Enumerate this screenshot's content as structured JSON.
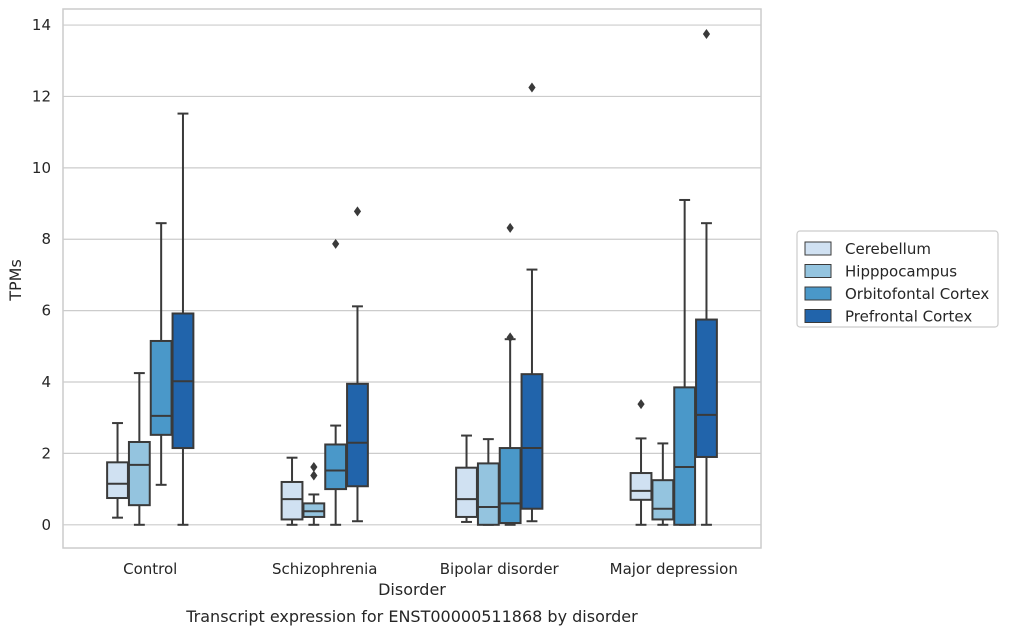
{
  "chart_data": {
    "type": "box",
    "title": "",
    "caption": "Transcript expression for ENST00000511868 by disorder",
    "xlabel": "Disorder",
    "ylabel": "TPMs",
    "categories": [
      "Control",
      "Schizophrenia",
      "Bipolar disorder",
      "Major depression"
    ],
    "ylim": [
      -0.65,
      14.45
    ],
    "yticks": [
      0,
      2,
      4,
      6,
      8,
      10,
      12,
      14
    ],
    "grid": true,
    "legend_position": "right",
    "series": [
      {
        "name": "Cerebellum",
        "color": "#d0e1f2",
        "boxes": [
          {
            "whisker_low": 0.2,
            "q1": 0.75,
            "median": 1.15,
            "q3": 1.75,
            "whisker_high": 2.85,
            "outliers": []
          },
          {
            "whisker_low": 0.0,
            "q1": 0.15,
            "median": 0.72,
            "q3": 1.2,
            "whisker_high": 1.88,
            "outliers": []
          },
          {
            "whisker_low": 0.08,
            "q1": 0.22,
            "median": 0.72,
            "q3": 1.6,
            "whisker_high": 2.5,
            "outliers": []
          },
          {
            "whisker_low": 0.0,
            "q1": 0.7,
            "median": 0.95,
            "q3": 1.45,
            "whisker_high": 2.42,
            "outliers": [
              3.38
            ]
          }
        ]
      },
      {
        "name": "Hipppocampus",
        "color": "#94c4df",
        "boxes": [
          {
            "whisker_low": 0.0,
            "q1": 0.55,
            "median": 1.68,
            "q3": 2.32,
            "whisker_high": 4.25,
            "outliers": []
          },
          {
            "whisker_low": 0.0,
            "q1": 0.22,
            "median": 0.38,
            "q3": 0.6,
            "whisker_high": 0.85,
            "outliers": [
              1.38,
              1.62
            ]
          },
          {
            "whisker_low": 0.0,
            "q1": 0.0,
            "median": 0.5,
            "q3": 1.72,
            "whisker_high": 2.4,
            "outliers": []
          },
          {
            "whisker_low": 0.0,
            "q1": 0.15,
            "median": 0.45,
            "q3": 1.25,
            "whisker_high": 2.28,
            "outliers": []
          }
        ]
      },
      {
        "name": "Orbitofontal Cortex",
        "color": "#4a98c9",
        "boxes": [
          {
            "whisker_low": 1.12,
            "q1": 2.52,
            "median": 3.05,
            "q3": 5.15,
            "whisker_high": 8.45,
            "outliers": []
          },
          {
            "whisker_low": 0.0,
            "q1": 1.0,
            "median": 1.52,
            "q3": 2.25,
            "whisker_high": 2.78,
            "outliers": [
              7.87
            ]
          },
          {
            "whisker_low": 0.0,
            "q1": 0.05,
            "median": 0.6,
            "q3": 2.15,
            "whisker_high": 5.2,
            "outliers": [
              5.25,
              8.32
            ]
          },
          {
            "whisker_low": 0.0,
            "q1": 0.0,
            "median": 1.62,
            "q3": 3.85,
            "whisker_high": 9.1,
            "outliers": []
          }
        ]
      },
      {
        "name": "Prefrontal Cortex",
        "color": "#2164ab",
        "boxes": [
          {
            "whisker_low": 0.0,
            "q1": 2.15,
            "median": 4.02,
            "q3": 5.92,
            "whisker_high": 11.52,
            "outliers": []
          },
          {
            "whisker_low": 0.1,
            "q1": 1.08,
            "median": 2.3,
            "q3": 3.95,
            "whisker_high": 6.12,
            "outliers": [
              8.78
            ]
          },
          {
            "whisker_low": 0.1,
            "q1": 0.45,
            "median": 2.15,
            "q3": 4.22,
            "whisker_high": 7.15,
            "outliers": [
              12.25
            ]
          },
          {
            "whisker_low": 0.0,
            "q1": 1.9,
            "median": 3.08,
            "q3": 5.75,
            "whisker_high": 8.45,
            "outliers": [
              13.75
            ]
          }
        ]
      }
    ]
  }
}
